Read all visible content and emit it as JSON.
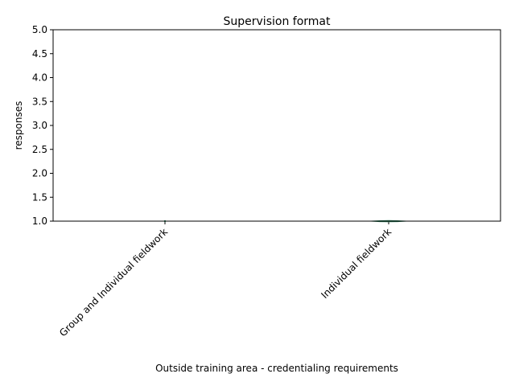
{
  "chart_data": {
    "type": "violin",
    "title": "Supervision format",
    "xlabel": "Outside training area - credentialing requirements",
    "ylabel": "responses",
    "categories": [
      "Group and Individual fieldwork",
      "Individual fieldwork"
    ],
    "values": [
      1,
      1
    ],
    "ylim": [
      1.0,
      5.0
    ],
    "yticks": [
      "1.0",
      "1.5",
      "2.0",
      "2.5",
      "3.0",
      "3.5",
      "4.0",
      "4.5",
      "5.0"
    ],
    "grid": false,
    "legend": "none",
    "colors": {
      "violin_stroke": "#2e7d5b",
      "axis": "#000000"
    }
  }
}
